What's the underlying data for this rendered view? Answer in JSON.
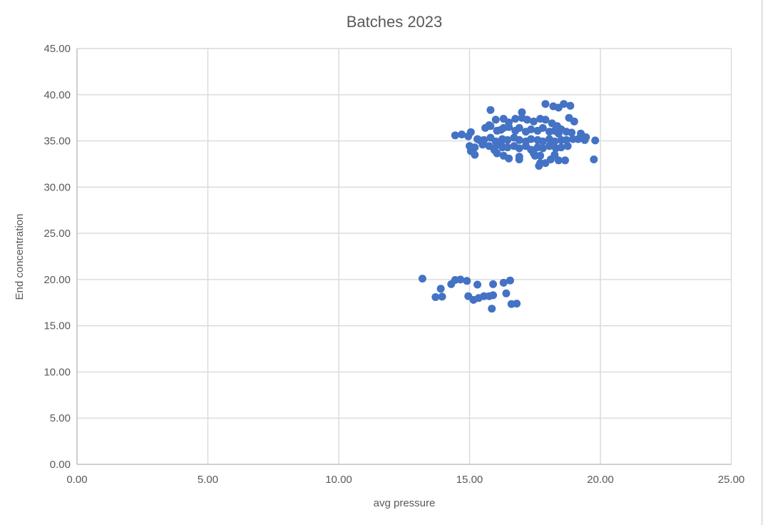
{
  "window": {
    "background": "#ffffff",
    "edge_line_color": "#d6d6d6"
  },
  "chart_data": {
    "type": "scatter",
    "title": "Batches 2023",
    "xlabel": "avg pressure",
    "ylabel": "End concentration",
    "xlim": [
      0,
      25
    ],
    "ylim": [
      0,
      45
    ],
    "x_tick_values": [
      0,
      5,
      10,
      15,
      20,
      25
    ],
    "x_tick_labels": [
      "0.00",
      "5.00",
      "10.00",
      "15.00",
      "20.00",
      "25.00"
    ],
    "y_tick_values": [
      0,
      5,
      10,
      15,
      20,
      25,
      30,
      35,
      40,
      45
    ],
    "y_tick_labels": [
      "0.00",
      "5.00",
      "10.00",
      "15.00",
      "20.00",
      "25.00",
      "30.00",
      "35.00",
      "40.00",
      "45.00"
    ],
    "grid": true,
    "legend_position": "none",
    "marker_color": "#4472C4",
    "marker_radius": 5.5,
    "text_color": "#595959",
    "grid_color": "#d9d9d9",
    "axis_line_color": "#c6c6c6",
    "series": [
      {
        "name": "Batches 2023",
        "points": [
          [
            17.9,
            39.0
          ],
          [
            18.2,
            38.75
          ],
          [
            18.6,
            39.0
          ],
          [
            18.85,
            38.8
          ],
          [
            15.8,
            38.35
          ],
          [
            17.0,
            38.1
          ],
          [
            18.4,
            38.6
          ],
          [
            16.0,
            37.3
          ],
          [
            16.3,
            37.4
          ],
          [
            16.5,
            37.0
          ],
          [
            16.75,
            37.4
          ],
          [
            17.0,
            37.5
          ],
          [
            17.2,
            37.3
          ],
          [
            17.45,
            37.1
          ],
          [
            17.7,
            37.4
          ],
          [
            17.9,
            37.3
          ],
          [
            18.15,
            36.9
          ],
          [
            18.8,
            37.5
          ],
          [
            19.0,
            37.1
          ],
          [
            15.6,
            36.4
          ],
          [
            15.8,
            36.6
          ],
          [
            16.05,
            36.1
          ],
          [
            16.3,
            36.4
          ],
          [
            16.5,
            36.5
          ],
          [
            16.75,
            36.1
          ],
          [
            16.9,
            36.4
          ],
          [
            17.15,
            36.0
          ],
          [
            17.35,
            36.25
          ],
          [
            17.6,
            36.1
          ],
          [
            17.8,
            36.4
          ],
          [
            18.05,
            36.0
          ],
          [
            18.25,
            36.1
          ],
          [
            18.5,
            36.25
          ],
          [
            18.7,
            36.0
          ],
          [
            18.35,
            36.6
          ],
          [
            15.75,
            36.7
          ],
          [
            16.2,
            36.2
          ],
          [
            14.45,
            35.6
          ],
          [
            14.7,
            35.7
          ],
          [
            14.95,
            35.5
          ],
          [
            15.05,
            35.95
          ],
          [
            15.3,
            35.2
          ],
          [
            15.4,
            35.05
          ],
          [
            15.55,
            35.1
          ],
          [
            15.8,
            35.35
          ],
          [
            16.0,
            34.95
          ],
          [
            16.25,
            35.2
          ],
          [
            16.45,
            35.1
          ],
          [
            16.7,
            35.35
          ],
          [
            16.9,
            35.1
          ],
          [
            17.15,
            34.95
          ],
          [
            17.35,
            35.2
          ],
          [
            17.6,
            35.1
          ],
          [
            17.8,
            34.95
          ],
          [
            18.05,
            35.2
          ],
          [
            18.25,
            34.95
          ],
          [
            18.5,
            35.1
          ],
          [
            18.7,
            35.1
          ],
          [
            18.95,
            35.2
          ],
          [
            19.15,
            35.2
          ],
          [
            19.4,
            35.1
          ],
          [
            19.8,
            35.05
          ],
          [
            18.4,
            35.8
          ],
          [
            18.9,
            35.9
          ],
          [
            19.25,
            35.8
          ],
          [
            19.45,
            35.4
          ],
          [
            15.0,
            34.45
          ],
          [
            15.2,
            34.3
          ],
          [
            15.5,
            34.6
          ],
          [
            15.75,
            34.45
          ],
          [
            15.95,
            34.2
          ],
          [
            16.2,
            34.6
          ],
          [
            16.45,
            34.3
          ],
          [
            16.7,
            34.45
          ],
          [
            16.9,
            34.2
          ],
          [
            17.15,
            34.45
          ],
          [
            17.35,
            34.05
          ],
          [
            17.6,
            34.3
          ],
          [
            17.8,
            34.2
          ],
          [
            18.05,
            34.45
          ],
          [
            18.3,
            34.2
          ],
          [
            18.5,
            34.3
          ],
          [
            18.75,
            34.45
          ],
          [
            15.95,
            34.0
          ],
          [
            16.25,
            34.3
          ],
          [
            15.05,
            33.9
          ],
          [
            15.2,
            33.5
          ],
          [
            16.05,
            33.65
          ],
          [
            16.3,
            33.4
          ],
          [
            16.5,
            33.1
          ],
          [
            16.9,
            33.3
          ],
          [
            16.9,
            33.0
          ],
          [
            17.45,
            33.65
          ],
          [
            17.5,
            33.4
          ],
          [
            17.7,
            33.4
          ],
          [
            18.1,
            33.0
          ],
          [
            18.25,
            33.5
          ],
          [
            17.7,
            32.6
          ],
          [
            18.4,
            32.9
          ],
          [
            18.65,
            32.9
          ],
          [
            19.75,
            33.0
          ],
          [
            17.65,
            32.3
          ],
          [
            17.9,
            32.6
          ],
          [
            13.2,
            20.1
          ],
          [
            13.9,
            19.0
          ],
          [
            13.7,
            18.1
          ],
          [
            13.95,
            18.15
          ],
          [
            14.3,
            19.5
          ],
          [
            14.45,
            19.95
          ],
          [
            14.65,
            20.0
          ],
          [
            14.9,
            19.85
          ],
          [
            14.95,
            18.2
          ],
          [
            15.15,
            17.8
          ],
          [
            15.3,
            19.45
          ],
          [
            15.35,
            18.0
          ],
          [
            15.55,
            18.2
          ],
          [
            15.75,
            18.2
          ],
          [
            15.9,
            19.5
          ],
          [
            15.9,
            18.3
          ],
          [
            15.85,
            16.85
          ],
          [
            16.3,
            19.65
          ],
          [
            16.55,
            19.9
          ],
          [
            16.4,
            18.5
          ],
          [
            16.6,
            17.35
          ],
          [
            16.8,
            17.4
          ]
        ]
      }
    ]
  }
}
